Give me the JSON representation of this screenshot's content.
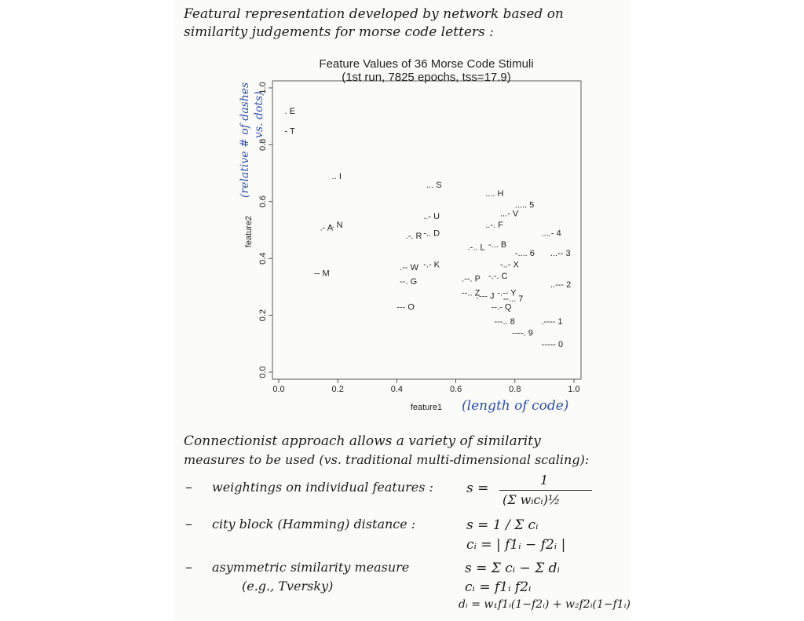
{
  "heading": {
    "line1": "Featural representation developed by network based on",
    "line2": "similarity judgements for morse code letters :"
  },
  "annotations": {
    "ylabel_note_line1": "(relative # of dashes",
    "ylabel_note_line2": "vs. dots)",
    "xlabel_note": "(length of code)"
  },
  "chart_data": {
    "type": "scatter",
    "title_line1": "Feature Values of 36 Morse Code Stimuli",
    "title_line2": "(1st run, 7825 epochs, tss=17.9)",
    "xlabel": "feature1",
    "ylabel": "feature2",
    "xlim": [
      0,
      1
    ],
    "ylim": [
      0,
      1
    ],
    "xticks": [
      "0.0",
      "0.2",
      "0.4",
      "0.6",
      "0.8",
      "1.0"
    ],
    "yticks": [
      "0.0",
      "0.2",
      "0.4",
      "0.6",
      "0.8",
      "1.0"
    ],
    "grid": false,
    "points": [
      {
        "label": ". E",
        "x": 0.02,
        "y": 0.92
      },
      {
        "label": "- T",
        "x": 0.02,
        "y": 0.85
      },
      {
        "label": ".. I",
        "x": 0.18,
        "y": 0.69
      },
      {
        "label": ".- A",
        "x": 0.14,
        "y": 0.51
      },
      {
        "label": "-. N",
        "x": 0.17,
        "y": 0.52
      },
      {
        "label": "-- M",
        "x": 0.12,
        "y": 0.35
      },
      {
        "label": "... S",
        "x": 0.5,
        "y": 0.66
      },
      {
        "label": "..- U",
        "x": 0.49,
        "y": 0.55
      },
      {
        "label": ".-. R",
        "x": 0.43,
        "y": 0.48
      },
      {
        "label": "-.. D",
        "x": 0.49,
        "y": 0.49
      },
      {
        "label": ".-- W",
        "x": 0.41,
        "y": 0.37
      },
      {
        "label": "-.- K",
        "x": 0.49,
        "y": 0.38
      },
      {
        "label": "--. G",
        "x": 0.41,
        "y": 0.32
      },
      {
        "label": "--- O",
        "x": 0.4,
        "y": 0.23
      },
      {
        "label": ".... H",
        "x": 0.7,
        "y": 0.63
      },
      {
        "label": "..... 5",
        "x": 0.8,
        "y": 0.59
      },
      {
        "label": "...- V",
        "x": 0.75,
        "y": 0.56
      },
      {
        "label": "..-. F",
        "x": 0.7,
        "y": 0.52
      },
      {
        "label": ".-.. L",
        "x": 0.64,
        "y": 0.44
      },
      {
        "label": "-... B",
        "x": 0.71,
        "y": 0.45
      },
      {
        "label": "....- 4",
        "x": 0.89,
        "y": 0.49
      },
      {
        "label": "-.... 6",
        "x": 0.8,
        "y": 0.42
      },
      {
        "label": "...-- 3",
        "x": 0.92,
        "y": 0.42
      },
      {
        "label": "-..- X",
        "x": 0.75,
        "y": 0.38
      },
      {
        "label": ".--. P",
        "x": 0.62,
        "y": 0.33
      },
      {
        "label": "-.-. C",
        "x": 0.71,
        "y": 0.34
      },
      {
        "label": "..--- 2",
        "x": 0.92,
        "y": 0.31
      },
      {
        "label": "--.. Z",
        "x": 0.62,
        "y": 0.28
      },
      {
        "label": ".--- J",
        "x": 0.67,
        "y": 0.27
      },
      {
        "label": "-.-- Y",
        "x": 0.74,
        "y": 0.28
      },
      {
        "label": "--... 7",
        "x": 0.76,
        "y": 0.26
      },
      {
        "label": "--.- Q",
        "x": 0.72,
        "y": 0.23
      },
      {
        "label": "---.. 8",
        "x": 0.73,
        "y": 0.18
      },
      {
        "label": ".---- 1",
        "x": 0.89,
        "y": 0.18
      },
      {
        "label": "----. 9",
        "x": 0.79,
        "y": 0.14
      },
      {
        "label": "----- 0",
        "x": 0.89,
        "y": 0.1
      }
    ]
  },
  "notes": {
    "intro_line1": "Connectionist approach allows a variety of similarity",
    "intro_line2": "measures to be used (vs. traditional multi-dimensional scaling):",
    "bullet_dash": "–",
    "item1_label": "weightings on individual features :",
    "item1_formula_num": "1",
    "item1_formula_den": "(Σ wᵢcᵢ)½",
    "item1_formula_lhs": "s =",
    "item2_label": "city block (Hamming) distance :",
    "item2_formula_line1": "s = 1 / Σ cᵢ",
    "item2_formula_line2": "cᵢ = | f1ᵢ − f2ᵢ |",
    "item3_label_line1": "asymmetric similarity measure",
    "item3_label_line2": "(e.g., Tversky)",
    "item3_formula_line1": "s = Σ cᵢ − Σ dᵢ",
    "item3_formula_line2": "cᵢ = f1ᵢ f2ᵢ",
    "item3_formula_line3": "dᵢ = w₁f1ᵢ(1−f2ᵢ) + w₂f2ᵢ(1−f1ᵢ)"
  }
}
